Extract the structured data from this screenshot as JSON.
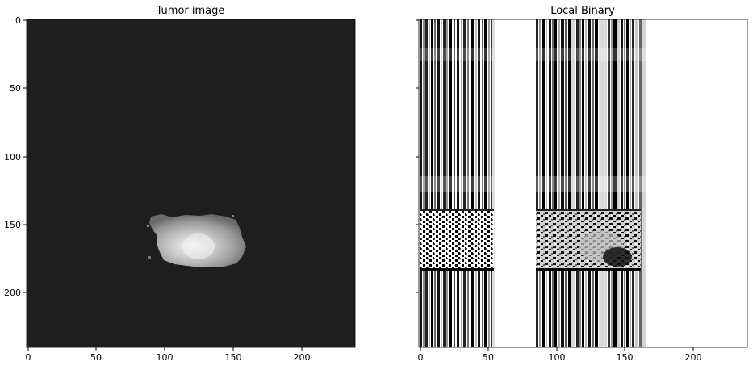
{
  "left_panel": {
    "title": "Tumor image",
    "x_ticks": [
      "0",
      "50",
      "100",
      "150",
      "200"
    ],
    "y_ticks": [
      "0",
      "50",
      "100",
      "150",
      "200"
    ],
    "background_color": "#1e1e1e"
  },
  "right_panel": {
    "title": "Local Binary",
    "x_ticks": [
      "0",
      "50",
      "100",
      "150",
      "200"
    ],
    "background_color": "#ffffff"
  }
}
